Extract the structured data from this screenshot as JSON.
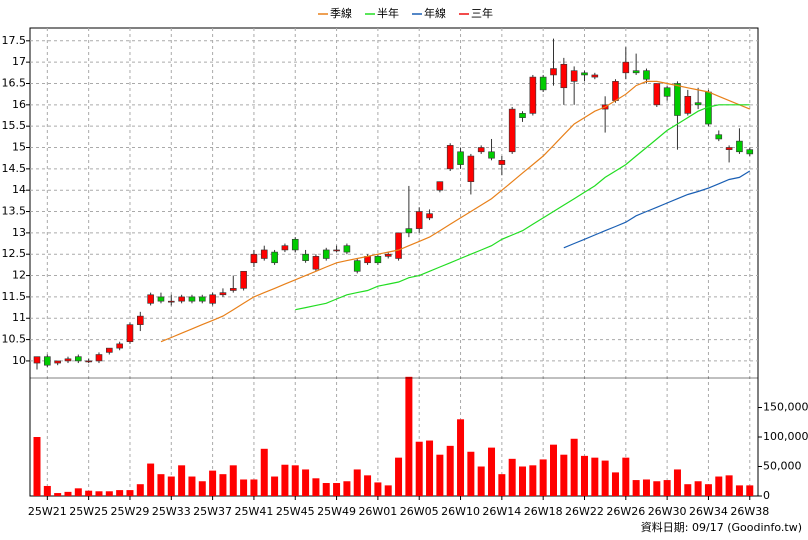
{
  "footer": "資料日期: 09/17 (Goodinfo.tw)",
  "chart_data": [
    {
      "type": "candlestick",
      "categories": [
        null,
        "25W21",
        null,
        null,
        null,
        "25W25",
        null,
        null,
        null,
        "25W29",
        null,
        null,
        null,
        "25W33",
        null,
        null,
        null,
        "25W37",
        null,
        null,
        null,
        "25W41",
        null,
        null,
        null,
        "25W45",
        null,
        null,
        null,
        "25W49",
        null,
        null,
        null,
        "26W01",
        null,
        null,
        null,
        "26W05",
        null,
        null,
        null,
        "26W10",
        null,
        null,
        null,
        "26W14",
        null,
        null,
        null,
        "26W18",
        null,
        null,
        null,
        "26W22",
        null,
        null,
        null,
        "26W26",
        null,
        null,
        null,
        "26W30",
        null,
        null,
        null,
        "26W34",
        null,
        null,
        null,
        "26W38"
      ],
      "open": [
        9.95,
        10.1,
        9.95,
        10.0,
        10.1,
        10.0,
        10.0,
        10.2,
        10.3,
        10.45,
        10.85,
        11.35,
        11.5,
        11.4,
        11.4,
        11.5,
        11.5,
        11.35,
        11.55,
        11.65,
        11.7,
        12.3,
        12.4,
        12.55,
        12.6,
        12.85,
        12.5,
        12.15,
        12.6,
        12.6,
        12.7,
        12.35,
        12.3,
        12.45,
        12.45,
        12.4,
        13.1,
        13.1,
        13.35,
        14.0,
        14.5,
        14.9,
        14.2,
        14.9,
        14.9,
        14.6,
        14.9,
        15.8,
        15.8,
        16.65,
        16.7,
        16.4,
        16.55,
        16.75,
        16.65,
        15.9,
        16.1,
        16.75,
        16.8,
        16.8,
        16.0,
        16.4,
        16.5,
        15.8,
        16.05,
        16.3,
        15.3,
        14.95,
        15.15,
        14.95
      ],
      "high": [
        10.1,
        10.15,
        10.0,
        10.1,
        10.15,
        10.05,
        10.2,
        10.3,
        10.45,
        10.9,
        11.15,
        11.6,
        11.6,
        11.55,
        11.55,
        11.55,
        11.55,
        11.6,
        11.7,
        12.0,
        12.1,
        12.6,
        12.7,
        12.6,
        12.75,
        12.9,
        12.6,
        12.5,
        12.65,
        12.7,
        12.75,
        12.4,
        12.5,
        12.5,
        12.55,
        13.0,
        14.1,
        13.6,
        13.55,
        14.2,
        15.1,
        15.0,
        14.85,
        15.05,
        15.2,
        14.8,
        15.95,
        15.85,
        16.7,
        16.7,
        17.55,
        17.1,
        16.9,
        16.8,
        16.75,
        16.2,
        16.6,
        17.35,
        17.2,
        16.85,
        16.5,
        16.45,
        16.55,
        16.35,
        16.4,
        16.35,
        15.4,
        15.05,
        15.45,
        15.0
      ],
      "low": [
        9.8,
        9.85,
        9.9,
        9.95,
        9.95,
        9.95,
        9.95,
        10.15,
        10.25,
        10.4,
        10.7,
        11.3,
        11.35,
        11.3,
        11.35,
        11.35,
        11.35,
        11.3,
        11.5,
        11.6,
        11.65,
        12.2,
        12.35,
        12.25,
        12.55,
        12.55,
        12.3,
        12.1,
        12.35,
        12.55,
        12.5,
        12.05,
        12.25,
        12.25,
        12.4,
        12.35,
        12.9,
        13.0,
        13.3,
        13.95,
        14.45,
        14.5,
        13.9,
        14.85,
        14.7,
        14.35,
        14.85,
        15.6,
        15.75,
        16.3,
        16.45,
        16.0,
        16.0,
        16.55,
        16.6,
        15.35,
        16.05,
        16.6,
        16.7,
        16.5,
        15.95,
        16.1,
        14.95,
        15.75,
        15.9,
        15.5,
        15.15,
        14.65,
        14.85,
        14.8
      ],
      "close": [
        10.1,
        9.9,
        10.0,
        10.05,
        10.0,
        10.0,
        10.15,
        10.3,
        10.4,
        10.85,
        11.05,
        11.55,
        11.4,
        11.4,
        11.5,
        11.4,
        11.4,
        11.55,
        11.6,
        11.7,
        12.1,
        12.5,
        12.6,
        12.3,
        12.7,
        12.6,
        12.35,
        12.45,
        12.4,
        12.6,
        12.55,
        12.1,
        12.45,
        12.3,
        12.5,
        13.0,
        13.0,
        13.5,
        13.45,
        14.2,
        15.05,
        14.6,
        14.8,
        15.0,
        14.75,
        14.7,
        15.9,
        15.7,
        16.65,
        16.35,
        16.85,
        16.95,
        16.8,
        16.7,
        16.7,
        16.0,
        16.55,
        17.0,
        16.75,
        16.6,
        16.5,
        16.2,
        15.75,
        16.2,
        16.0,
        15.55,
        15.2,
        15.0,
        14.9,
        14.85
      ],
      "up_color": "#ff0000",
      "down_color": "#00cc00",
      "series": [
        {
          "name": "季線",
          "color": "#e8801a",
          "values": [
            null,
            null,
            null,
            null,
            null,
            null,
            null,
            null,
            null,
            null,
            null,
            null,
            10.45,
            10.55,
            10.65,
            10.75,
            10.85,
            10.95,
            11.05,
            11.2,
            11.35,
            11.5,
            11.6,
            11.7,
            11.8,
            11.9,
            12.0,
            12.1,
            12.2,
            12.3,
            12.35,
            12.4,
            12.45,
            12.5,
            12.55,
            12.6,
            12.7,
            12.8,
            12.9,
            13.05,
            13.2,
            13.35,
            13.5,
            13.65,
            13.8,
            14.0,
            14.2,
            14.4,
            14.6,
            14.8,
            15.05,
            15.3,
            15.55,
            15.7,
            15.85,
            15.95,
            16.1,
            16.25,
            16.45,
            16.55,
            16.55,
            16.5,
            16.45,
            16.4,
            16.35,
            16.3,
            16.2,
            16.1,
            16.0,
            15.9
          ]
        },
        {
          "name": "半年",
          "color": "#22dd22",
          "values": [
            null,
            null,
            null,
            null,
            null,
            null,
            null,
            null,
            null,
            null,
            null,
            null,
            null,
            null,
            null,
            null,
            null,
            null,
            null,
            null,
            null,
            null,
            null,
            null,
            null,
            11.2,
            11.25,
            11.3,
            11.35,
            11.45,
            11.55,
            11.6,
            11.65,
            11.75,
            11.8,
            11.85,
            11.95,
            12.0,
            12.1,
            12.2,
            12.3,
            12.4,
            12.5,
            12.6,
            12.7,
            12.85,
            12.95,
            13.05,
            13.2,
            13.35,
            13.5,
            13.65,
            13.8,
            13.95,
            14.1,
            14.3,
            14.45,
            14.6,
            14.8,
            15.0,
            15.2,
            15.4,
            15.55,
            15.7,
            15.85,
            15.95,
            16.0,
            16.0,
            16.0,
            16.0
          ]
        },
        {
          "name": "年線",
          "color": "#1a5fb4",
          "values": [
            null,
            null,
            null,
            null,
            null,
            null,
            null,
            null,
            null,
            null,
            null,
            null,
            null,
            null,
            null,
            null,
            null,
            null,
            null,
            null,
            null,
            null,
            null,
            null,
            null,
            null,
            null,
            null,
            null,
            null,
            null,
            null,
            null,
            null,
            null,
            null,
            null,
            null,
            null,
            null,
            null,
            null,
            null,
            null,
            null,
            null,
            null,
            null,
            null,
            null,
            null,
            12.65,
            12.75,
            12.85,
            12.95,
            13.05,
            13.15,
            13.25,
            13.4,
            13.5,
            13.6,
            13.7,
            13.8,
            13.9,
            13.97,
            14.05,
            14.15,
            14.25,
            14.3,
            14.45
          ]
        },
        {
          "name": "三年",
          "color": "#ee1111",
          "values": [
            null,
            null,
            null,
            null,
            null,
            null,
            null,
            null,
            null,
            null,
            null,
            null,
            null,
            null,
            null,
            null,
            null,
            null,
            null,
            null,
            null,
            null,
            null,
            null,
            null,
            null,
            null,
            null,
            null,
            null,
            null,
            null,
            null,
            null,
            null,
            null,
            null,
            null,
            null,
            null,
            null,
            null,
            null,
            null,
            null,
            null,
            null,
            null,
            null,
            null,
            null,
            null,
            null,
            null,
            null,
            null,
            null,
            null,
            null,
            null,
            null,
            null,
            null,
            null,
            null,
            null,
            null,
            null,
            null,
            null
          ]
        }
      ],
      "ylim": [
        9.6,
        17.8
      ],
      "yticks": [
        10,
        10.5,
        11,
        11.5,
        12,
        12.5,
        13,
        13.5,
        14,
        14.5,
        15,
        15.5,
        16,
        16.5,
        17,
        17.5
      ],
      "grid": true
    },
    {
      "type": "bar",
      "values": [
        100000,
        17000,
        5000,
        7000,
        13000,
        9000,
        8000,
        8000,
        10000,
        10000,
        20000,
        55000,
        37000,
        33000,
        52000,
        33000,
        25000,
        43000,
        37000,
        52000,
        28000,
        28000,
        80000,
        33000,
        53000,
        52000,
        45000,
        30000,
        22000,
        22000,
        25000,
        45000,
        35000,
        23000,
        18000,
        65000,
        202000,
        92000,
        94000,
        70000,
        85000,
        130000,
        75000,
        50000,
        82000,
        37000,
        63000,
        50000,
        52000,
        62000,
        87000,
        70000,
        97000,
        68000,
        65000,
        60000,
        40000,
        65000,
        27000,
        28000,
        25000,
        27000,
        45000,
        20000,
        25000,
        20000,
        33000,
        35000,
        18000,
        18000
      ],
      "color": "#ff0000",
      "ylim": [
        0,
        200000
      ],
      "yticks": [
        0,
        {
          "value": 50000,
          "label": "50,000"
        },
        {
          "value": 100000,
          "label": "100,000"
        },
        {
          "value": 150000,
          "label": "150,000"
        }
      ]
    }
  ]
}
